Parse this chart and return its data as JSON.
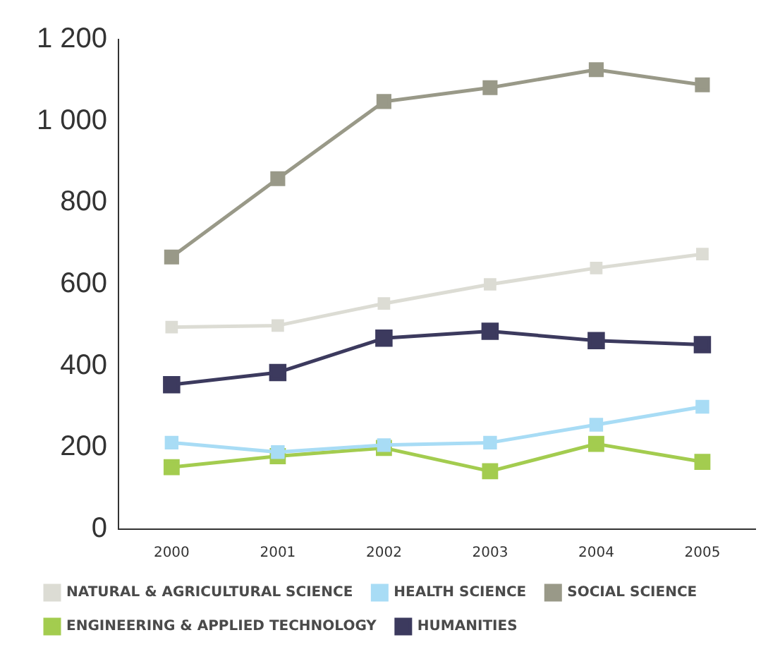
{
  "chart_data": {
    "type": "line",
    "categories": [
      "2000",
      "2001",
      "2002",
      "2003",
      "2004",
      "2005"
    ],
    "series": [
      {
        "name": "NATURAL & AGRICULTURAL SCIENCE",
        "color": "#dcdcd4",
        "values": [
          495,
          499,
          553,
          600,
          640,
          674
        ]
      },
      {
        "name": "HEALTH SCIENCE",
        "color": "#a8dcf5",
        "values": [
          212,
          189,
          206,
          212,
          256,
          300
        ]
      },
      {
        "name": "SOCIAL SCIENCE",
        "color": "#999988",
        "values": [
          667,
          859,
          1048,
          1082,
          1126,
          1089
        ]
      },
      {
        "name": "ENGINEERING & APPLIED TECHNOLOGY",
        "color": "#a3cc4f",
        "values": [
          152,
          179,
          199,
          142,
          209,
          165
        ]
      },
      {
        "name": "HUMANITIES",
        "color": "#3c3a5e",
        "values": [
          354,
          384,
          468,
          485,
          462,
          452
        ]
      }
    ],
    "ylim": [
      0,
      1200
    ],
    "yticks": [
      0,
      200,
      400,
      600,
      800,
      {
        "value": 1000,
        "label": "1 000"
      },
      {
        "value": 1200,
        "label": "1 200"
      }
    ],
    "marker": "square",
    "line_style": "solid",
    "legend": "bottom",
    "grid": false
  }
}
